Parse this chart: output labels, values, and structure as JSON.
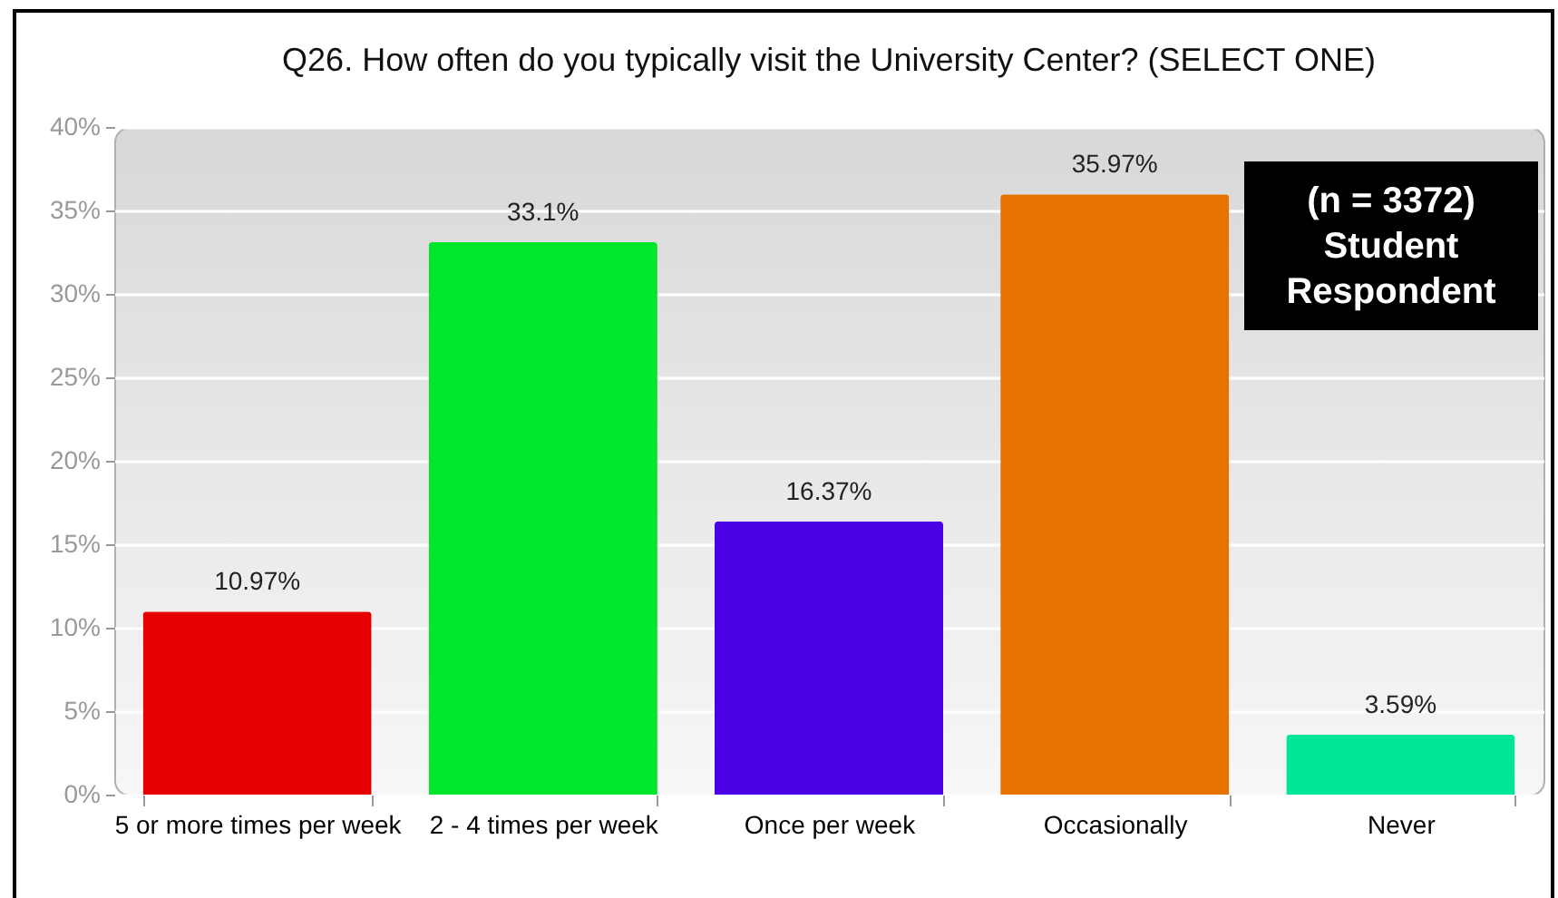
{
  "chart_data": {
    "type": "bar",
    "title": "Q26. How often do you typically visit the University Center? (SELECT ONE)",
    "categories": [
      "5 or more times per week",
      "2 - 4 times per week",
      "Once per week",
      "Occasionally",
      "Never"
    ],
    "values": [
      10.97,
      33.1,
      16.37,
      35.97,
      3.59
    ],
    "colors": [
      "#e60000",
      "#00e62b",
      "#4c00e6",
      "#e67300",
      "#00e699"
    ],
    "value_labels": [
      "10.97%",
      "33.1%",
      "16.37%",
      "35.97%",
      "3.59%"
    ],
    "ylim": [
      0,
      40
    ],
    "yticks": [
      {
        "value": 0,
        "label": "0%"
      },
      {
        "value": 5,
        "label": "5%"
      },
      {
        "value": 10,
        "label": "10%"
      },
      {
        "value": 15,
        "label": "15%"
      },
      {
        "value": 20,
        "label": "20%"
      },
      {
        "value": 25,
        "label": "25%"
      },
      {
        "value": 30,
        "label": "30%"
      },
      {
        "value": 35,
        "label": "35%"
      },
      {
        "value": 40,
        "label": "40%"
      }
    ],
    "grid": "y",
    "annotations": [
      "(n = 3372)\nStudent\nRespondent"
    ]
  }
}
